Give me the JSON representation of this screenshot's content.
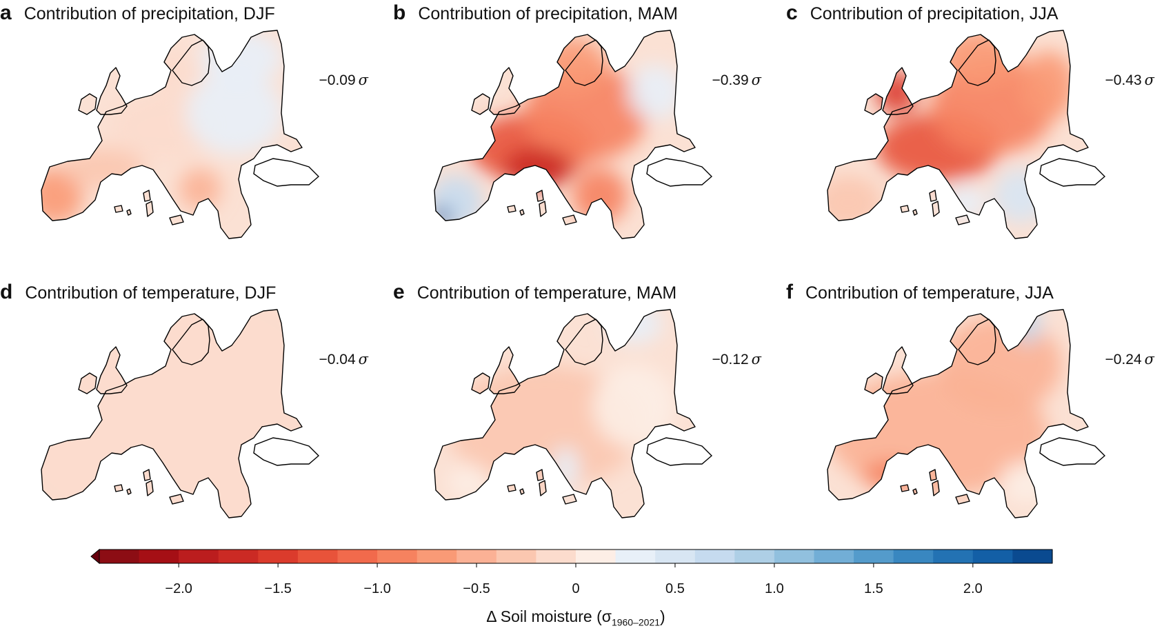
{
  "panels": [
    {
      "id": "a",
      "letter": "a",
      "title": "Contribution of precipitation, DJF",
      "mean": "−0.09",
      "sigma": "σ",
      "pattern": "precip_djf"
    },
    {
      "id": "b",
      "letter": "b",
      "title": "Contribution of precipitation, MAM",
      "mean": "−0.39",
      "sigma": "σ",
      "pattern": "precip_mam"
    },
    {
      "id": "c",
      "letter": "c",
      "title": "Contribution of precipitation, JJA",
      "mean": "−0.43",
      "sigma": "σ",
      "pattern": "precip_jja"
    },
    {
      "id": "d",
      "letter": "d",
      "title": "Contribution of temperature, DJF",
      "mean": "−0.04",
      "sigma": "σ",
      "pattern": "temp_djf"
    },
    {
      "id": "e",
      "letter": "e",
      "title": "Contribution of temperature, MAM",
      "mean": "−0.12",
      "sigma": "σ",
      "pattern": "temp_mam"
    },
    {
      "id": "f",
      "letter": "f",
      "title": "Contribution of temperature, JJA",
      "mean": "−0.24",
      "sigma": "σ",
      "pattern": "temp_jja"
    }
  ],
  "colorbar": {
    "min": -2.4,
    "max": 2.4,
    "step": 0.2,
    "ticks": [
      {
        "value": -2.0,
        "label": "−2.0"
      },
      {
        "value": -1.5,
        "label": "−1.5"
      },
      {
        "value": -1.0,
        "label": "−1.0"
      },
      {
        "value": -0.5,
        "label": "−0.5"
      },
      {
        "value": 0,
        "label": "0"
      },
      {
        "value": 0.5,
        "label": "0.5"
      },
      {
        "value": 1.0,
        "label": "1.0"
      },
      {
        "value": 1.5,
        "label": "1.5"
      },
      {
        "value": 2.0,
        "label": "2.0"
      }
    ],
    "colors": [
      "#67000d",
      "#8c0d14",
      "#a50f15",
      "#bb1d1e",
      "#cb2a24",
      "#db3b2c",
      "#e8533a",
      "#f16a4c",
      "#f6825f",
      "#f99a76",
      "#fbb195",
      "#fbc7b0",
      "#fcdccd",
      "#fdeee6",
      "#e8f0f8",
      "#d8e6f3",
      "#c6dbef",
      "#aecfe6",
      "#91c0de",
      "#72aed6",
      "#549bcb",
      "#3987c0",
      "#2372b3",
      "#135fa6",
      "#0a4a90",
      "#08306b"
    ],
    "title_prefix": "Δ Soil moisture (σ",
    "title_sub": "1960–2021",
    "title_suffix": ")"
  }
}
